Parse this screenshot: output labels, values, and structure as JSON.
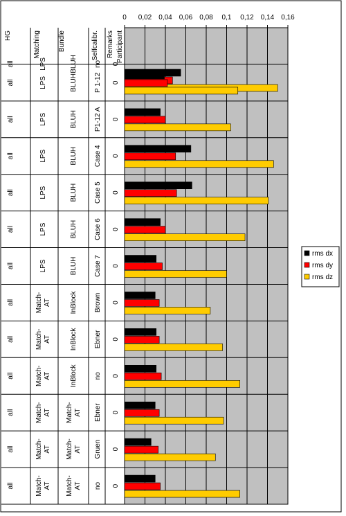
{
  "chart_data": {
    "type": "bar",
    "orientation": "horizontal",
    "x_axis": {
      "position": "top",
      "ticks": [
        "0",
        "0,02",
        "0,04",
        "0,06",
        "0,08",
        "0,1",
        "0,12",
        "0,14",
        "0,16"
      ],
      "range": [
        0,
        0.16
      ],
      "gridlines": true
    },
    "table_headers": [
      "HG",
      "Matching",
      "Bundle",
      "Selfcalibr.",
      "Remarks",
      "Participant"
    ],
    "rows": [
      {
        "hg": "all",
        "matching": [
          "LPS"
        ],
        "bundle": [
          "BLUH"
        ],
        "selfcalibr": [
          "no"
        ],
        "remarks": "0"
      },
      {
        "hg": "all",
        "matching": [
          "LPS"
        ],
        "bundle": [
          "BLUH"
        ],
        "selfcalibr": [
          "P 1-12"
        ],
        "remarks": "0"
      },
      {
        "hg": "all",
        "matching": [
          "LPS"
        ],
        "bundle": [
          "BLUH"
        ],
        "selfcalibr": [
          "P1-12 A"
        ],
        "remarks": "0"
      },
      {
        "hg": "all",
        "matching": [
          "LPS"
        ],
        "bundle": [
          "BLUH"
        ],
        "selfcalibr": [
          "Case 4"
        ],
        "remarks": "0"
      },
      {
        "hg": "all",
        "matching": [
          "LPS"
        ],
        "bundle": [
          "BLUH"
        ],
        "selfcalibr": [
          "Case 5"
        ],
        "remarks": "0"
      },
      {
        "hg": "all",
        "matching": [
          "LPS"
        ],
        "bundle": [
          "BLUH"
        ],
        "selfcalibr": [
          "Case 6"
        ],
        "remarks": "0"
      },
      {
        "hg": "all",
        "matching": [
          "LPS"
        ],
        "bundle": [
          "BLUH"
        ],
        "selfcalibr": [
          "Case 7"
        ],
        "remarks": "0"
      },
      {
        "hg": "all",
        "matching": [
          "Match-",
          "AT"
        ],
        "bundle": [
          "InBlock"
        ],
        "selfcalibr": [
          "Brown"
        ],
        "remarks": "0"
      },
      {
        "hg": "all",
        "matching": [
          "Match-",
          "AT"
        ],
        "bundle": [
          "InBlock"
        ],
        "selfcalibr": [
          "Ebner"
        ],
        "remarks": "0"
      },
      {
        "hg": "all",
        "matching": [
          "Match-",
          "AT"
        ],
        "bundle": [
          "InBlock"
        ],
        "selfcalibr": [
          "no"
        ],
        "remarks": "0"
      },
      {
        "hg": "all",
        "matching": [
          "Match-",
          "AT"
        ],
        "bundle": [
          "Match-",
          "AT"
        ],
        "selfcalibr": [
          "Ebner"
        ],
        "remarks": "0"
      },
      {
        "hg": "all",
        "matching": [
          "Match-",
          "AT"
        ],
        "bundle": [
          "Match-",
          "AT"
        ],
        "selfcalibr": [
          "Gruen"
        ],
        "remarks": "0"
      },
      {
        "hg": "all",
        "matching": [
          "Match-",
          "AT"
        ],
        "bundle": [
          "Match-",
          "AT"
        ],
        "selfcalibr": [
          "no"
        ],
        "remarks": "0"
      }
    ],
    "series": [
      {
        "name": "rms dx",
        "color": "#000000",
        "values": [
          0.055,
          0.039,
          0.035,
          0.065,
          0.066,
          0.035,
          0.031,
          0.03,
          0.031,
          0.031,
          0.03,
          0.026,
          0.03
        ]
      },
      {
        "name": "rms dy",
        "color": "#ff0000",
        "values": [
          0.047,
          0.042,
          0.04,
          0.05,
          0.051,
          0.04,
          0.037,
          0.034,
          0.034,
          0.036,
          0.034,
          0.033,
          0.035
        ]
      },
      {
        "name": "rms dz",
        "color": "#ffcc00",
        "values": [
          0.15,
          0.111,
          0.104,
          0.146,
          0.141,
          0.118,
          0.1,
          0.084,
          0.096,
          0.113,
          0.097,
          0.089,
          0.113
        ]
      }
    ],
    "legend_position": "right",
    "plot_background": "#c0c0c0"
  }
}
